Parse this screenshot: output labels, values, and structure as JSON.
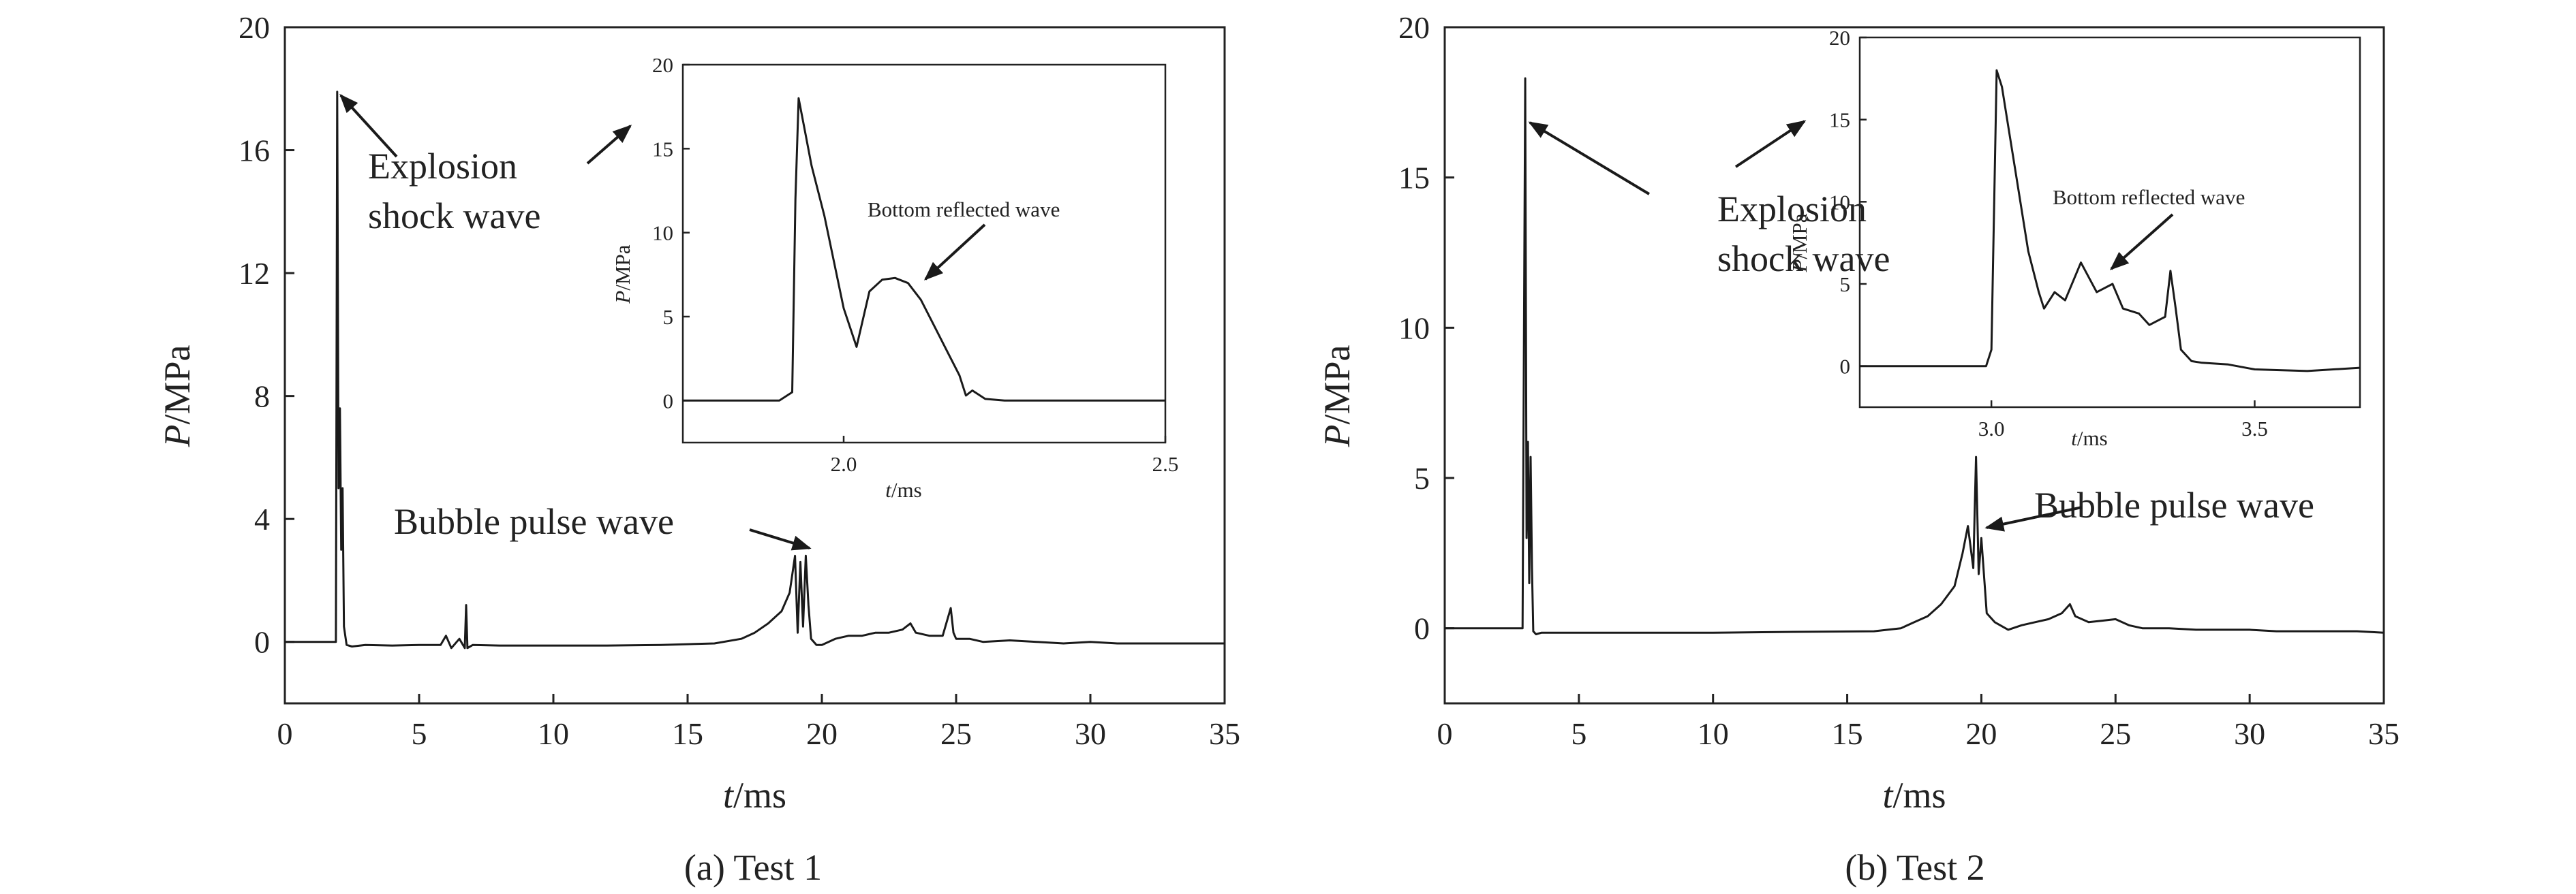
{
  "chart_data": [
    {
      "type": "line",
      "caption": "(a) Test 1",
      "xlabel_italic": "t",
      "xlabel_unit": "/ms",
      "ylabel_italic": "P",
      "ylabel_unit": "/MPa",
      "xlim": [
        0,
        35
      ],
      "ylim": [
        -2,
        20
      ],
      "xticks": [
        "0",
        "5",
        "10",
        "15",
        "20",
        "25",
        "30",
        "35"
      ],
      "yticks": [
        "0",
        "4",
        "8",
        "12",
        "16",
        "20"
      ],
      "annotations": {
        "shock": [
          "Explosion",
          "shock wave"
        ],
        "bubble": "Bubble pulse wave"
      },
      "series": [
        {
          "x": [
            0,
            1.9,
            1.95,
            2.0,
            2.05,
            2.1,
            2.15,
            2.2,
            2.3,
            2.5,
            3,
            4,
            5,
            5.8,
            6.0,
            6.2,
            6.5,
            6.7,
            6.75,
            6.8,
            7,
            8,
            10,
            12,
            14,
            16,
            17,
            17.5,
            18,
            18.5,
            18.8,
            19.0,
            19.1,
            19.2,
            19.3,
            19.4,
            19.5,
            19.6,
            19.8,
            20,
            20.5,
            21,
            21.5,
            22,
            22.5,
            23,
            23.3,
            23.5,
            24,
            24.5,
            24.8,
            24.9,
            25,
            25.5,
            26,
            27,
            28,
            29,
            30,
            31,
            32,
            33,
            34,
            35
          ],
          "y": [
            0,
            0,
            17.9,
            5,
            7.6,
            3,
            5,
            0.5,
            -0.1,
            -0.15,
            -0.1,
            -0.12,
            -0.1,
            -0.1,
            0.2,
            -0.2,
            0.1,
            -0.2,
            1.2,
            -0.2,
            -0.1,
            -0.12,
            -0.12,
            -0.12,
            -0.1,
            -0.05,
            0.1,
            0.3,
            0.6,
            1.0,
            1.6,
            2.8,
            0.3,
            2.6,
            0.5,
            2.8,
            1.2,
            0.1,
            -0.1,
            -0.1,
            0.1,
            0.2,
            0.2,
            0.3,
            0.3,
            0.4,
            0.6,
            0.3,
            0.2,
            0.2,
            1.1,
            0.3,
            0.1,
            0.1,
            0.0,
            0.05,
            0.0,
            -0.05,
            0.0,
            -0.05,
            -0.05,
            -0.05,
            -0.05,
            -0.05
          ]
        }
      ],
      "inset": {
        "xlabel_italic": "t",
        "xlabel_unit": "/ms",
        "ylabel_italic": "P",
        "ylabel_unit": "/MPa",
        "xlim": [
          1.75,
          2.5
        ],
        "ylim": [
          -2.5,
          20
        ],
        "xticks": [
          "2.0",
          "2.5"
        ],
        "yticks": [
          "0",
          "5",
          "10",
          "15",
          "20"
        ],
        "annotation": "Bottom reflected wave",
        "series": [
          {
            "x": [
              1.75,
              1.9,
              1.92,
              1.925,
              1.93,
              1.94,
              1.95,
              1.97,
              2.0,
              2.02,
              2.04,
              2.06,
              2.08,
              2.1,
              2.12,
              2.14,
              2.16,
              2.18,
              2.19,
              2.2,
              2.22,
              2.25,
              2.3,
              2.4,
              2.5
            ],
            "y": [
              0,
              0,
              0.5,
              12,
              18,
              16,
              14,
              11,
              5.5,
              3.2,
              6.5,
              7.2,
              7.3,
              7.0,
              6.0,
              4.5,
              3.0,
              1.5,
              0.3,
              0.6,
              0.1,
              0.0,
              0.0,
              0.0,
              0.0
            ]
          }
        ]
      }
    },
    {
      "type": "line",
      "caption": "(b) Test 2",
      "xlabel_italic": "t",
      "xlabel_unit": "/ms",
      "ylabel_italic": "P",
      "ylabel_unit": "/MPa",
      "xlim": [
        0,
        35
      ],
      "ylim": [
        -2.5,
        20
      ],
      "xticks": [
        "0",
        "5",
        "10",
        "15",
        "20",
        "25",
        "30",
        "35"
      ],
      "yticks": [
        "0",
        "5",
        "10",
        "15",
        "20"
      ],
      "annotations": {
        "shock": [
          "Explosion",
          "shock wave"
        ],
        "bubble": "Bubble pulse wave"
      },
      "series": [
        {
          "x": [
            0,
            2.9,
            3.0,
            3.05,
            3.1,
            3.15,
            3.2,
            3.25,
            3.3,
            3.4,
            3.6,
            4,
            5,
            7,
            10,
            13,
            16,
            17,
            17.5,
            18,
            18.5,
            19,
            19.3,
            19.5,
            19.7,
            19.8,
            19.9,
            20.0,
            20.2,
            20.5,
            21,
            21.5,
            22,
            22.5,
            23,
            23.3,
            23.5,
            24,
            24.5,
            25,
            25.5,
            26,
            27,
            28,
            29,
            30,
            31,
            32,
            33,
            34,
            35
          ],
          "y": [
            0,
            0,
            18.3,
            3,
            6.2,
            1.5,
            5.7,
            2,
            -0.1,
            -0.2,
            -0.15,
            -0.15,
            -0.15,
            -0.15,
            -0.15,
            -0.12,
            -0.1,
            0.0,
            0.2,
            0.4,
            0.8,
            1.4,
            2.5,
            3.4,
            2.0,
            5.7,
            1.8,
            3.0,
            0.5,
            0.2,
            -0.05,
            0.1,
            0.2,
            0.3,
            0.5,
            0.8,
            0.4,
            0.2,
            0.25,
            0.3,
            0.1,
            0.0,
            0.0,
            -0.05,
            -0.05,
            -0.05,
            -0.1,
            -0.1,
            -0.1,
            -0.1,
            -0.15
          ]
        }
      ],
      "inset": {
        "xlabel_italic": "t",
        "xlabel_unit": "/ms",
        "ylabel_italic": "P",
        "ylabel_unit": "/MPa",
        "xlim": [
          2.75,
          3.7
        ],
        "ylim": [
          -2.5,
          20
        ],
        "xticks": [
          "3.0",
          "3.5"
        ],
        "yticks": [
          "0",
          "5",
          "10",
          "15",
          "20"
        ],
        "annotation": "Bottom reflected wave",
        "series": [
          {
            "x": [
              2.75,
              2.99,
              3.0,
              3.01,
              3.02,
              3.03,
              3.05,
              3.07,
              3.09,
              3.1,
              3.12,
              3.14,
              3.17,
              3.2,
              3.23,
              3.25,
              3.28,
              3.3,
              3.33,
              3.34,
              3.35,
              3.36,
              3.38,
              3.4,
              3.45,
              3.5,
              3.6,
              3.7
            ],
            "y": [
              0,
              0,
              1.0,
              18,
              17,
              15,
              11,
              7,
              4.5,
              3.5,
              4.5,
              4,
              6.3,
              4.5,
              5,
              3.5,
              3.2,
              2.5,
              3.0,
              5.8,
              3.5,
              1.0,
              0.3,
              0.2,
              0.1,
              -0.2,
              -0.3,
              -0.1
            ]
          }
        ]
      }
    }
  ]
}
